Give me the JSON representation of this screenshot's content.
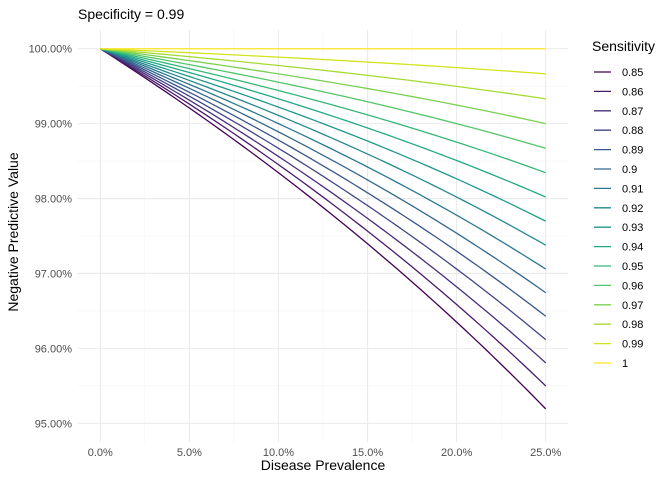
{
  "chart_data": {
    "type": "line",
    "title": "Specificity = 0.99",
    "xlabel": "Disease Prevalence",
    "ylabel": "Negative Predictive Value",
    "ylabel_color": "#0000FF",
    "xlim": [
      0,
      0.25
    ],
    "ylim": [
      0.95,
      1.0
    ],
    "x_ticks": [
      0,
      0.05,
      0.1,
      0.15,
      0.2,
      0.25
    ],
    "x_tick_labels": [
      "0.0%",
      "5.0%",
      "10.0%",
      "15.0%",
      "20.0%",
      "25.0%"
    ],
    "y_ticks": [
      0.95,
      0.96,
      0.97,
      0.98,
      0.99,
      1.0
    ],
    "y_tick_labels": [
      "95.00%",
      "96.00%",
      "97.00%",
      "98.00%",
      "99.00%",
      "100.00%"
    ],
    "grid": true,
    "legend_title": "Sensitivity",
    "legend_position": "right",
    "specificity": 0.99,
    "series": [
      {
        "name": "0.85",
        "sensitivity": 0.85,
        "color": "#440154"
      },
      {
        "name": "0.86",
        "sensitivity": 0.86,
        "color": "#481a6c"
      },
      {
        "name": "0.87",
        "sensitivity": 0.87,
        "color": "#472f7d"
      },
      {
        "name": "0.88",
        "sensitivity": 0.88,
        "color": "#414487"
      },
      {
        "name": "0.89",
        "sensitivity": 0.89,
        "color": "#39568c"
      },
      {
        "name": "0.9",
        "sensitivity": 0.9,
        "color": "#31688e"
      },
      {
        "name": "0.91",
        "sensitivity": 0.91,
        "color": "#2a788e"
      },
      {
        "name": "0.92",
        "sensitivity": 0.92,
        "color": "#23888e"
      },
      {
        "name": "0.93",
        "sensitivity": 0.93,
        "color": "#1f988b"
      },
      {
        "name": "0.94",
        "sensitivity": 0.94,
        "color": "#22a884"
      },
      {
        "name": "0.95",
        "sensitivity": 0.95,
        "color": "#35b779"
      },
      {
        "name": "0.96",
        "sensitivity": 0.96,
        "color": "#54c568"
      },
      {
        "name": "0.97",
        "sensitivity": 0.97,
        "color": "#7ad151"
      },
      {
        "name": "0.98",
        "sensitivity": 0.98,
        "color": "#a5db36"
      },
      {
        "name": "0.99",
        "sensitivity": 0.99,
        "color": "#d2e21b"
      },
      {
        "name": "1",
        "sensitivity": 1.0,
        "color": "#fde725"
      }
    ]
  }
}
